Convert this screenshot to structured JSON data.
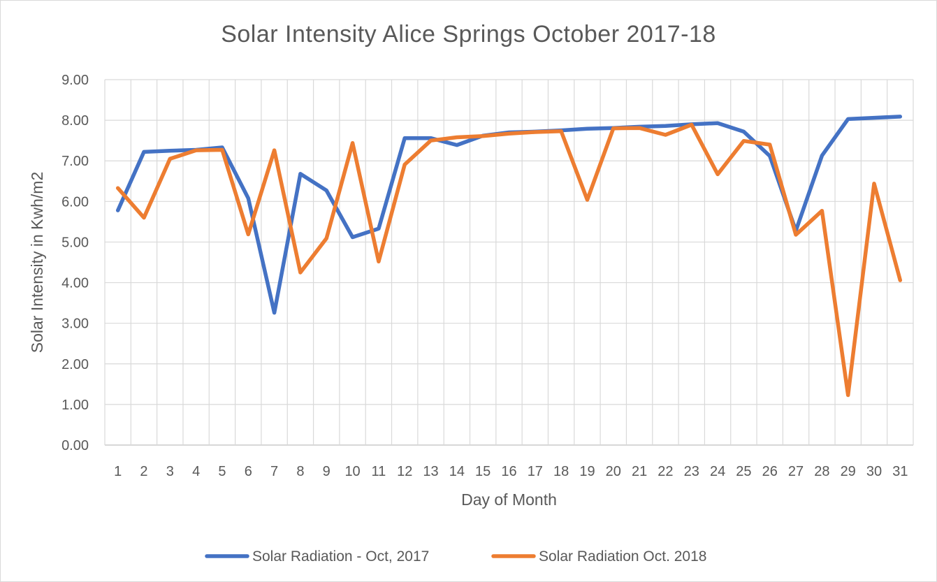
{
  "chart_data": {
    "type": "line",
    "title": "Solar Intensity Alice Springs October 2017-18",
    "xlabel": "Day of Month",
    "ylabel": "Solar Intensity in Kwh/m2",
    "ylim": [
      0,
      9
    ],
    "y_ticks": [
      "0.00",
      "1.00",
      "2.00",
      "3.00",
      "4.00",
      "5.00",
      "6.00",
      "7.00",
      "8.00",
      "9.00"
    ],
    "categories": [
      "1",
      "2",
      "3",
      "4",
      "5",
      "6",
      "7",
      "8",
      "9",
      "10",
      "11",
      "12",
      "13",
      "14",
      "15",
      "16",
      "17",
      "18",
      "19",
      "20",
      "21",
      "22",
      "23",
      "24",
      "25",
      "26",
      "27",
      "28",
      "29",
      "30",
      "31"
    ],
    "grid": true,
    "legend_position": "bottom",
    "series": [
      {
        "name": "Solar Radiation - Oct, 2017",
        "color": "#4472c4",
        "values": [
          5.78,
          7.22,
          7.25,
          7.27,
          7.33,
          6.08,
          3.26,
          6.68,
          6.27,
          5.12,
          5.33,
          7.56,
          7.56,
          7.39,
          7.62,
          7.7,
          7.72,
          7.75,
          7.79,
          7.81,
          7.84,
          7.86,
          7.9,
          7.93,
          7.72,
          7.12,
          5.28,
          7.13,
          8.03,
          8.06,
          8.09
        ]
      },
      {
        "name": "Solar Radiation Oct. 2018",
        "color": "#ed7d31",
        "values": [
          6.33,
          5.6,
          7.05,
          7.26,
          7.27,
          5.19,
          7.26,
          4.25,
          5.09,
          7.44,
          4.52,
          6.91,
          7.5,
          7.58,
          7.61,
          7.67,
          7.71,
          7.73,
          6.04,
          7.8,
          7.81,
          7.64,
          7.89,
          6.67,
          7.49,
          7.4,
          5.18,
          5.77,
          1.23,
          6.44,
          4.06
        ]
      }
    ]
  }
}
